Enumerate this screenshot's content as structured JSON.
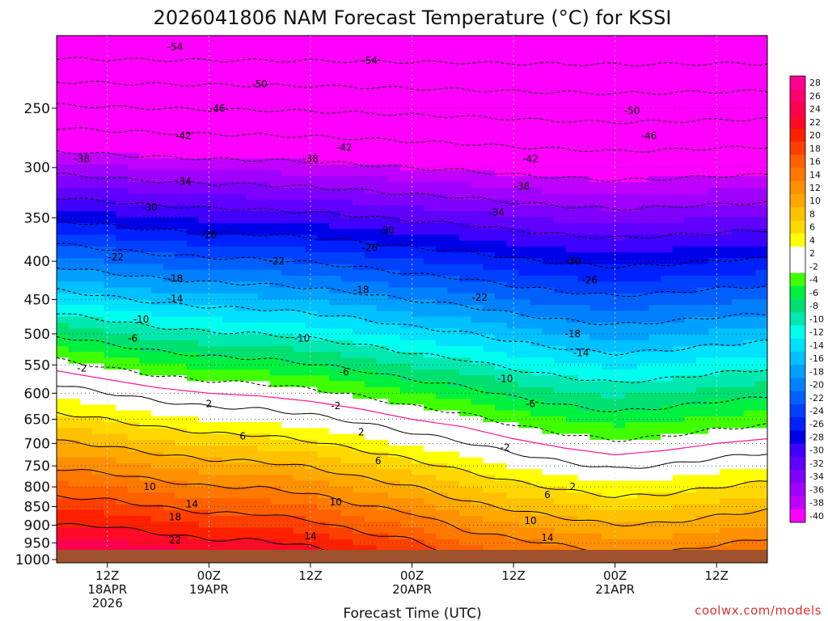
{
  "chart_data": {
    "type": "heatmap",
    "title": "2026041806 NAM Forecast Temperature (°C) for KSSI",
    "xlabel": "Forecast Time (UTC)",
    "ylabel": "",
    "y_scale": "log-pressure",
    "y_ticks": [
      250,
      300,
      350,
      400,
      450,
      500,
      550,
      600,
      650,
      700,
      750,
      800,
      850,
      900,
      950,
      1000
    ],
    "ylim": [
      200,
      1010
    ],
    "x_ticks": [
      {
        "t": 6,
        "lines": [
          "12Z",
          "18APR",
          "2026"
        ]
      },
      {
        "t": 18,
        "lines": [
          "00Z",
          "19APR"
        ]
      },
      {
        "t": 30,
        "lines": [
          "12Z"
        ]
      },
      {
        "t": 42,
        "lines": [
          "00Z",
          "20APR"
        ]
      },
      {
        "t": 54,
        "lines": [
          "12Z"
        ]
      },
      {
        "t": 66,
        "lines": [
          "00Z",
          "21APR"
        ]
      },
      {
        "t": 78,
        "lines": [
          "12Z"
        ]
      }
    ],
    "xlim": [
      0,
      84
    ],
    "colorbar_labels": [
      "28",
      "26",
      "24",
      "22",
      "20",
      "18",
      "16",
      "14",
      "12",
      "10",
      "8",
      "6",
      "4",
      "2",
      "-2",
      "-4",
      "-6",
      "-8",
      "-10",
      "-12",
      "-14",
      "-16",
      "-18",
      "-20",
      "-22",
      "-24",
      "-26",
      "-28",
      "-30",
      "-32",
      "-34",
      "-36",
      "-38",
      "-40"
    ],
    "colorbar_colors": [
      "#ff0090",
      "#ff0070",
      "#ff0050",
      "#ff0a28",
      "#ff2000",
      "#ff4000",
      "#ff6000",
      "#ff7800",
      "#ff9000",
      "#ffa800",
      "#ffc000",
      "#ffd800",
      "#ffff00",
      "#ffffff",
      "#ffffff",
      "#40ff00",
      "#00f040",
      "#00e070",
      "#00e8b0",
      "#00ffee",
      "#00e0ff",
      "#00c0ff",
      "#00a0ff",
      "#0080ff",
      "#0060ff",
      "#0040ff",
      "#0020ff",
      "#0000e8",
      "#4000ff",
      "#6000ff",
      "#8000ff",
      "#a000ff",
      "#c000ff",
      "#ff00ff"
    ],
    "profiles": [
      {
        "t": 0,
        "freeze_p": 560,
        "t_sfc": 27
      },
      {
        "t": 6,
        "freeze_p": 575,
        "t_sfc": 27
      },
      {
        "t": 12,
        "freeze_p": 590,
        "t_sfc": 26
      },
      {
        "t": 18,
        "freeze_p": 600,
        "t_sfc": 25
      },
      {
        "t": 24,
        "freeze_p": 605,
        "t_sfc": 25
      },
      {
        "t": 30,
        "freeze_p": 615,
        "t_sfc": 24
      },
      {
        "t": 36,
        "freeze_p": 630,
        "t_sfc": 22
      },
      {
        "t": 42,
        "freeze_p": 650,
        "t_sfc": 21
      },
      {
        "t": 48,
        "freeze_p": 665,
        "t_sfc": 18
      },
      {
        "t": 54,
        "freeze_p": 690,
        "t_sfc": 17
      },
      {
        "t": 60,
        "freeze_p": 710,
        "t_sfc": 16
      },
      {
        "t": 66,
        "freeze_p": 725,
        "t_sfc": 15
      },
      {
        "t": 72,
        "freeze_p": 715,
        "t_sfc": 15
      },
      {
        "t": 78,
        "freeze_p": 700,
        "t_sfc": 16
      },
      {
        "t": 84,
        "freeze_p": 690,
        "t_sfc": 17
      }
    ],
    "contour_labels": [
      {
        "text": "-54",
        "t": 14,
        "p": 207
      },
      {
        "text": "-54",
        "t": 37,
        "p": 216
      },
      {
        "text": "-50",
        "t": 24,
        "p": 232
      },
      {
        "text": "-50",
        "t": 68,
        "p": 252
      },
      {
        "text": "-46",
        "t": 19,
        "p": 250
      },
      {
        "text": "-46",
        "t": 70,
        "p": 272
      },
      {
        "text": "-42",
        "t": 15,
        "p": 272
      },
      {
        "text": "-42",
        "t": 34,
        "p": 282
      },
      {
        "text": "-42",
        "t": 56,
        "p": 292
      },
      {
        "text": "-38",
        "t": 3,
        "p": 292
      },
      {
        "text": "-38",
        "t": 30,
        "p": 292
      },
      {
        "text": "-38",
        "t": 55,
        "p": 318
      },
      {
        "text": "-34",
        "t": 15,
        "p": 313
      },
      {
        "text": "-34",
        "t": 52,
        "p": 344
      },
      {
        "text": "-30",
        "t": 11,
        "p": 339
      },
      {
        "text": "-30",
        "t": 39,
        "p": 364
      },
      {
        "text": "-30",
        "t": 61,
        "p": 400
      },
      {
        "text": "-26",
        "t": 18,
        "p": 369
      },
      {
        "text": "-26",
        "t": 37,
        "p": 384
      },
      {
        "text": "-26",
        "t": 63,
        "p": 424
      },
      {
        "text": "-22",
        "t": 7,
        "p": 395
      },
      {
        "text": "-22",
        "t": 26,
        "p": 400
      },
      {
        "text": "-22",
        "t": 50,
        "p": 447
      },
      {
        "text": "-18",
        "t": 14,
        "p": 422
      },
      {
        "text": "-18",
        "t": 36,
        "p": 437
      },
      {
        "text": "-18",
        "t": 61,
        "p": 500
      },
      {
        "text": "-14",
        "t": 14,
        "p": 449
      },
      {
        "text": "-14",
        "t": 62,
        "p": 530
      },
      {
        "text": "-10",
        "t": 10,
        "p": 478
      },
      {
        "text": "-10",
        "t": 29,
        "p": 507
      },
      {
        "text": "-10",
        "t": 53,
        "p": 574
      },
      {
        "text": "-6",
        "t": 9,
        "p": 507
      },
      {
        "text": "-6",
        "t": 34,
        "p": 562
      },
      {
        "text": "-6",
        "t": 56,
        "p": 620
      },
      {
        "text": "-2",
        "t": 3,
        "p": 556
      },
      {
        "text": "-2",
        "t": 33,
        "p": 624
      },
      {
        "text": "-2",
        "t": 53,
        "p": 709
      },
      {
        "text": "2",
        "t": 18,
        "p": 620
      },
      {
        "text": "2",
        "t": 36,
        "p": 676
      },
      {
        "text": "2",
        "t": 61,
        "p": 800
      },
      {
        "text": "6",
        "t": 22,
        "p": 685
      },
      {
        "text": "6",
        "t": 38,
        "p": 739
      },
      {
        "text": "6",
        "t": 58,
        "p": 820
      },
      {
        "text": "10",
        "t": 11,
        "p": 800
      },
      {
        "text": "10",
        "t": 33,
        "p": 838
      },
      {
        "text": "10",
        "t": 56,
        "p": 888
      },
      {
        "text": "14",
        "t": 16,
        "p": 844
      },
      {
        "text": "14",
        "t": 30,
        "p": 930
      },
      {
        "text": "14",
        "t": 58,
        "p": 935
      },
      {
        "text": "18",
        "t": 14,
        "p": 878
      },
      {
        "text": "22",
        "t": 14,
        "p": 942
      }
    ]
  },
  "credit": "coolwx.com/models"
}
